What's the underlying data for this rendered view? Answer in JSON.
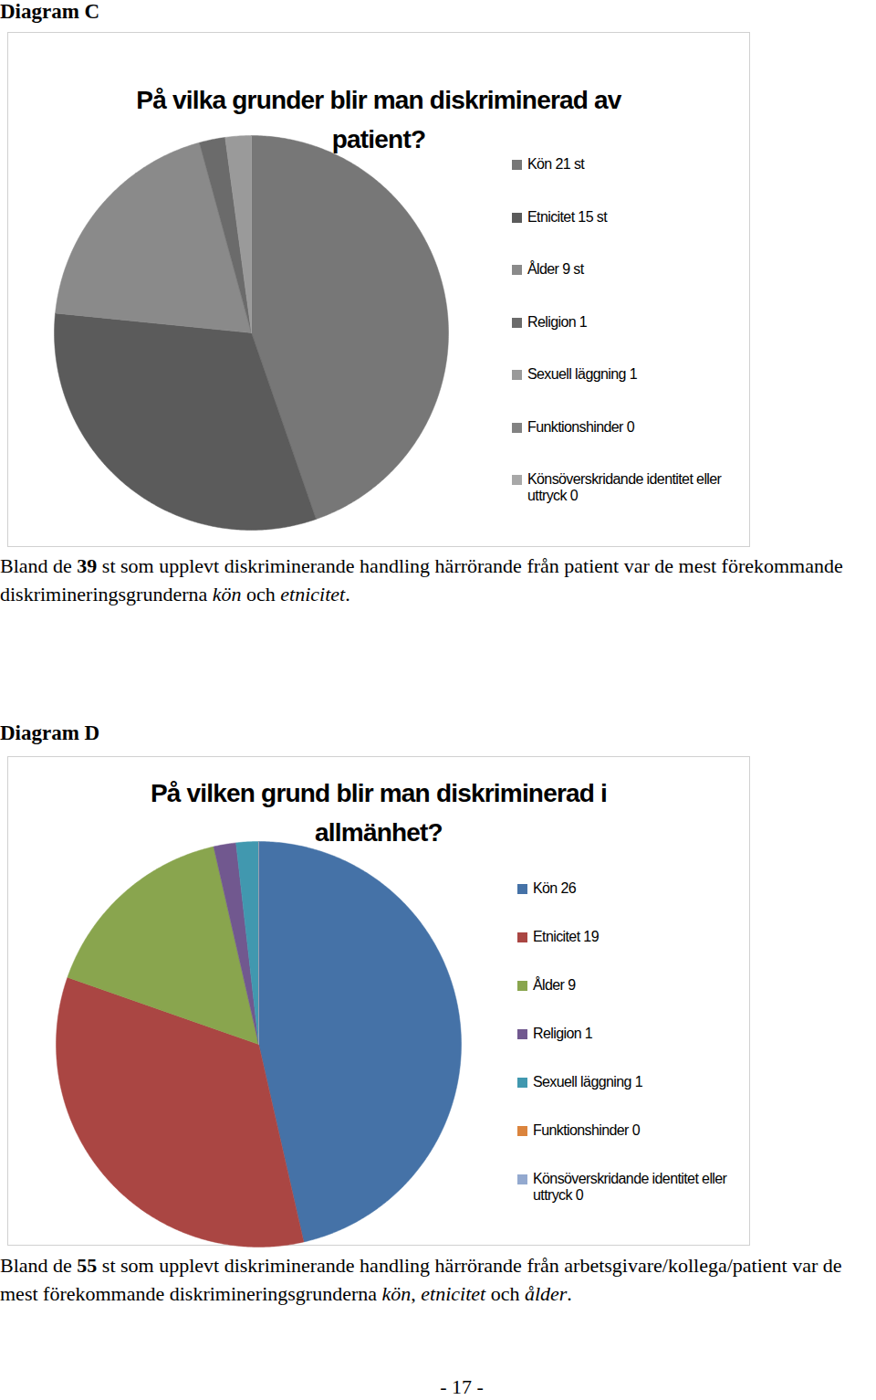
{
  "page": {
    "footer": "- 17 -"
  },
  "chart_data": [
    {
      "type": "pie",
      "heading": "Diagram C",
      "title": "På vilka grunder blir man diskriminerad av patient?",
      "categories": [
        "Kön 21 st",
        "Etnicitet 15 st",
        "Ålder 9 st",
        "Religion 1",
        "Sexuell läggning 1",
        "Funktionshinder 0",
        "Könsöverskridande identitet eller uttryck 0"
      ],
      "values": [
        21,
        15,
        9,
        1,
        1,
        0,
        0
      ],
      "colors": [
        "#777777",
        "#5b5b5b",
        "#8a8a8a",
        "#6b6b6b",
        "#9a9a9a",
        "#828282",
        "#a8a8a8"
      ],
      "legend": "right",
      "caption": [
        {
          "text": "Bland de "
        },
        {
          "text": "39",
          "style": "bold"
        },
        {
          "text": " st som upplevt diskriminerande handling härrörande från patient var de mest förekommande diskrimineringsgrunderna "
        },
        {
          "text": "kön",
          "style": "italic"
        },
        {
          "text": " och "
        },
        {
          "text": "etnicitet",
          "style": "italic"
        },
        {
          "text": "."
        }
      ]
    },
    {
      "type": "pie",
      "heading": "Diagram D",
      "title": "På vilken grund blir man diskriminerad i allmänhet?",
      "categories": [
        "Kön 26",
        "Etnicitet 19",
        "Ålder 9",
        "Religion 1",
        "Sexuell läggning 1",
        "Funktionshinder 0",
        "Könsöverskridande identitet eller uttryck 0"
      ],
      "values": [
        26,
        19,
        9,
        1,
        1,
        0,
        0
      ],
      "colors": [
        "#4572a7",
        "#aa4643",
        "#89a54e",
        "#71588f",
        "#4198af",
        "#db843d",
        "#93a9cf"
      ],
      "legend": "right",
      "caption": [
        {
          "text": "Bland de "
        },
        {
          "text": "55",
          "style": "bold"
        },
        {
          "text": " st som upplevt diskriminerande handling härrörande från arbetsgivare/kollega/patient var de mest förekommande diskrimineringsgrunderna "
        },
        {
          "text": "kön",
          "style": "italic"
        },
        {
          "text": ", "
        },
        {
          "text": "etnicitet",
          "style": "italic"
        },
        {
          "text": " och "
        },
        {
          "text": "ålder",
          "style": "italic"
        },
        {
          "text": "."
        }
      ]
    }
  ]
}
